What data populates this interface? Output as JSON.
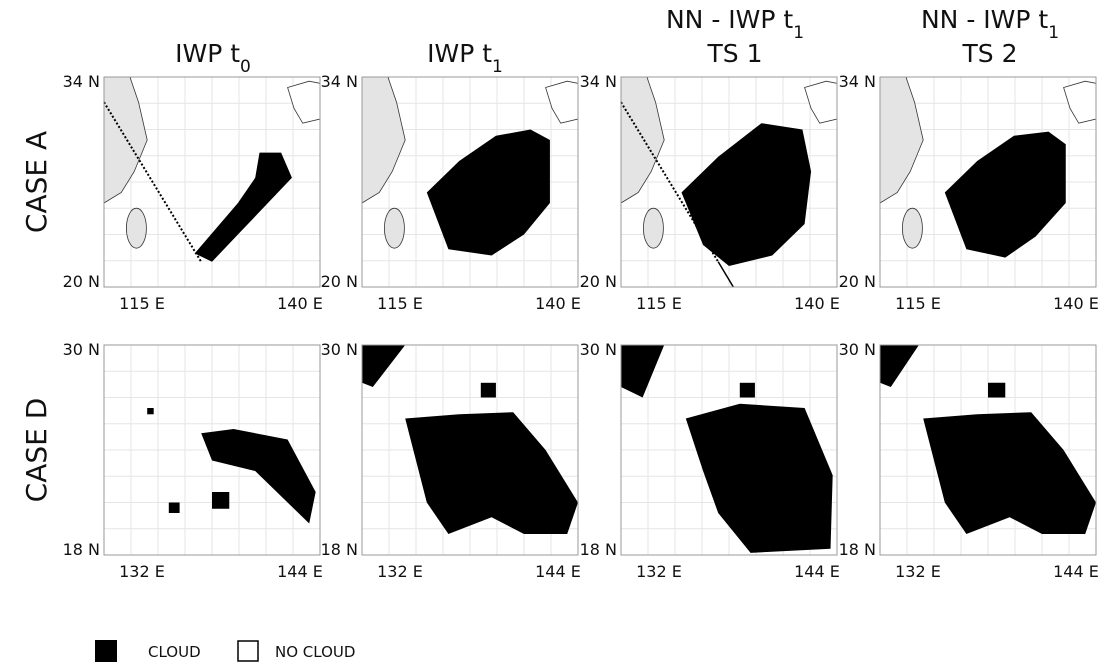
{
  "columns": [
    {
      "title": "IWP t",
      "subscript": "0"
    },
    {
      "title": "IWP t",
      "subscript": "1"
    },
    {
      "title": "NN - IWP t",
      "subscript": "1",
      "title2": "TS 1"
    },
    {
      "title": "NN - IWP t",
      "subscript": "1",
      "title2": "TS 2"
    }
  ],
  "rows": [
    {
      "label": "CASE A",
      "lat_top": "34 N",
      "lat_bottom": "20 N",
      "lon_left": "115 E",
      "lon_right": "140 E"
    },
    {
      "label": "CASE D",
      "lat_top": "30 N",
      "lat_bottom": "18 N",
      "lon_left": "132 E",
      "lon_right": "144 E"
    }
  ],
  "legend": [
    "CLOUD",
    "NO CLOUD"
  ]
}
